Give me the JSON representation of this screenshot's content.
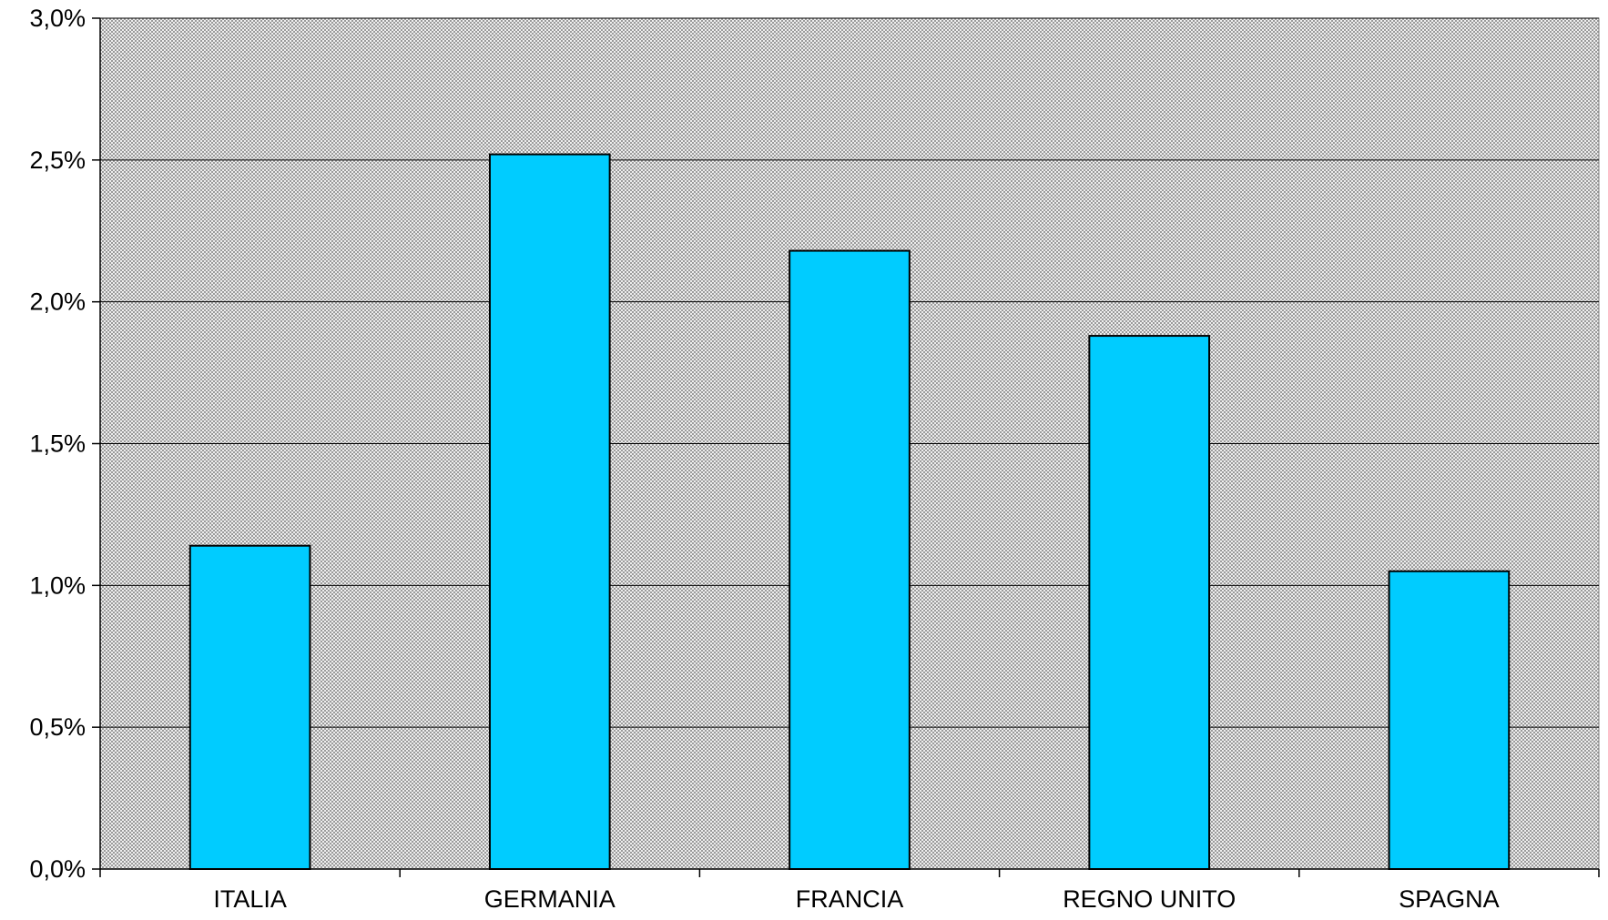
{
  "chart_data": {
    "type": "bar",
    "categories": [
      "ITALIA",
      "GERMANIA",
      "FRANCIA",
      "REGNO UNITO",
      "SPAGNA"
    ],
    "values": [
      1.14,
      2.52,
      2.18,
      1.88,
      1.05
    ],
    "ylim": [
      0,
      3.0
    ],
    "yticks": [
      0.0,
      0.5,
      1.0,
      1.5,
      2.0,
      2.5,
      3.0
    ],
    "ytick_labels": [
      "0,0%",
      "0,5%",
      "1,0%",
      "1,5%",
      "2,0%",
      "2,5%",
      "3,0%"
    ],
    "title": "",
    "xlabel": "",
    "ylabel": "",
    "grid": true,
    "legend": "none",
    "colors": {
      "bar_fill": "#00ccff",
      "bar_stroke": "#000000",
      "plot_background": "#c0c0c0",
      "gridline": "#000000"
    }
  }
}
